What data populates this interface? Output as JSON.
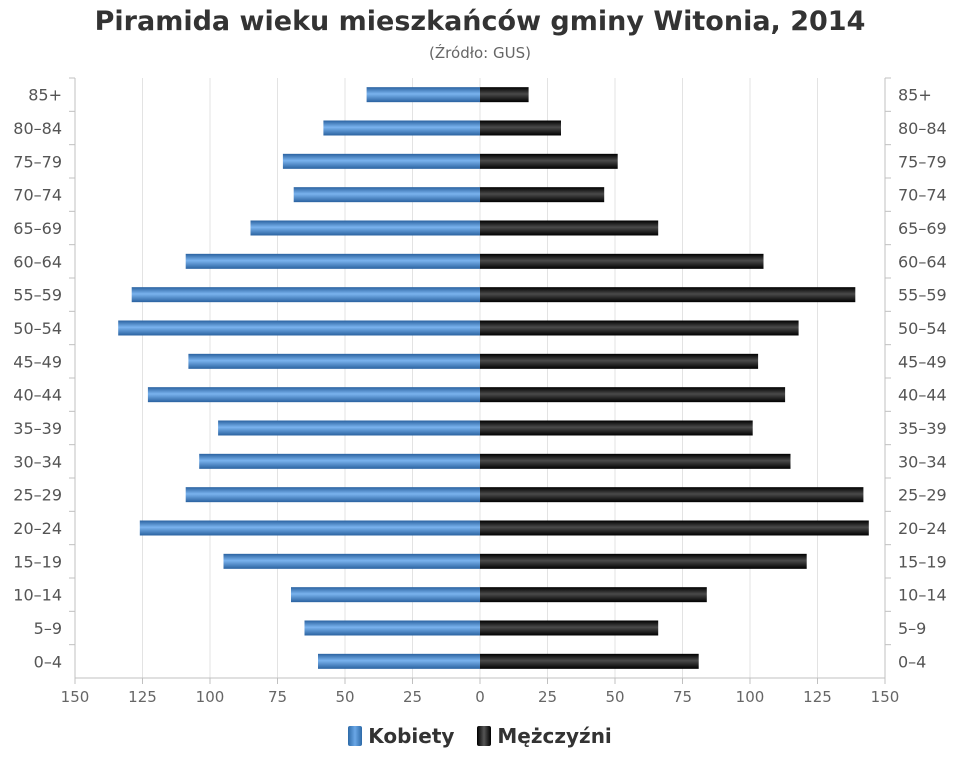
{
  "chart_data": {
    "type": "bar",
    "orientation": "horizontal-population-pyramid",
    "title": "Piramida wieku mieszkańców gminy Witonia, 2014",
    "subtitle": "(Źródło: GUS)",
    "categories": [
      "0–4",
      "5–9",
      "10–14",
      "15–19",
      "20–24",
      "25–29",
      "30–34",
      "35–39",
      "40–44",
      "45–49",
      "50–54",
      "55–59",
      "60–64",
      "65–69",
      "70–74",
      "75–79",
      "80–84",
      "85+"
    ],
    "series": [
      {
        "name": "Kobiety",
        "color": "#4a8bd0",
        "values": [
          60,
          65,
          70,
          95,
          126,
          109,
          104,
          97,
          123,
          108,
          134,
          129,
          109,
          85,
          69,
          73,
          58,
          42
        ]
      },
      {
        "name": "Mężczyźni",
        "color": "#111111",
        "values": [
          81,
          66,
          84,
          121,
          144,
          142,
          115,
          101,
          113,
          103,
          118,
          139,
          105,
          66,
          46,
          51,
          30,
          18
        ]
      }
    ],
    "x_ticks": [
      "150",
      "125",
      "100",
      "75",
      "50",
      "25",
      "0",
      "25",
      "50",
      "75",
      "100",
      "125",
      "150"
    ],
    "xlim": [
      -150,
      150
    ],
    "grid": true,
    "legend": "bottom"
  }
}
